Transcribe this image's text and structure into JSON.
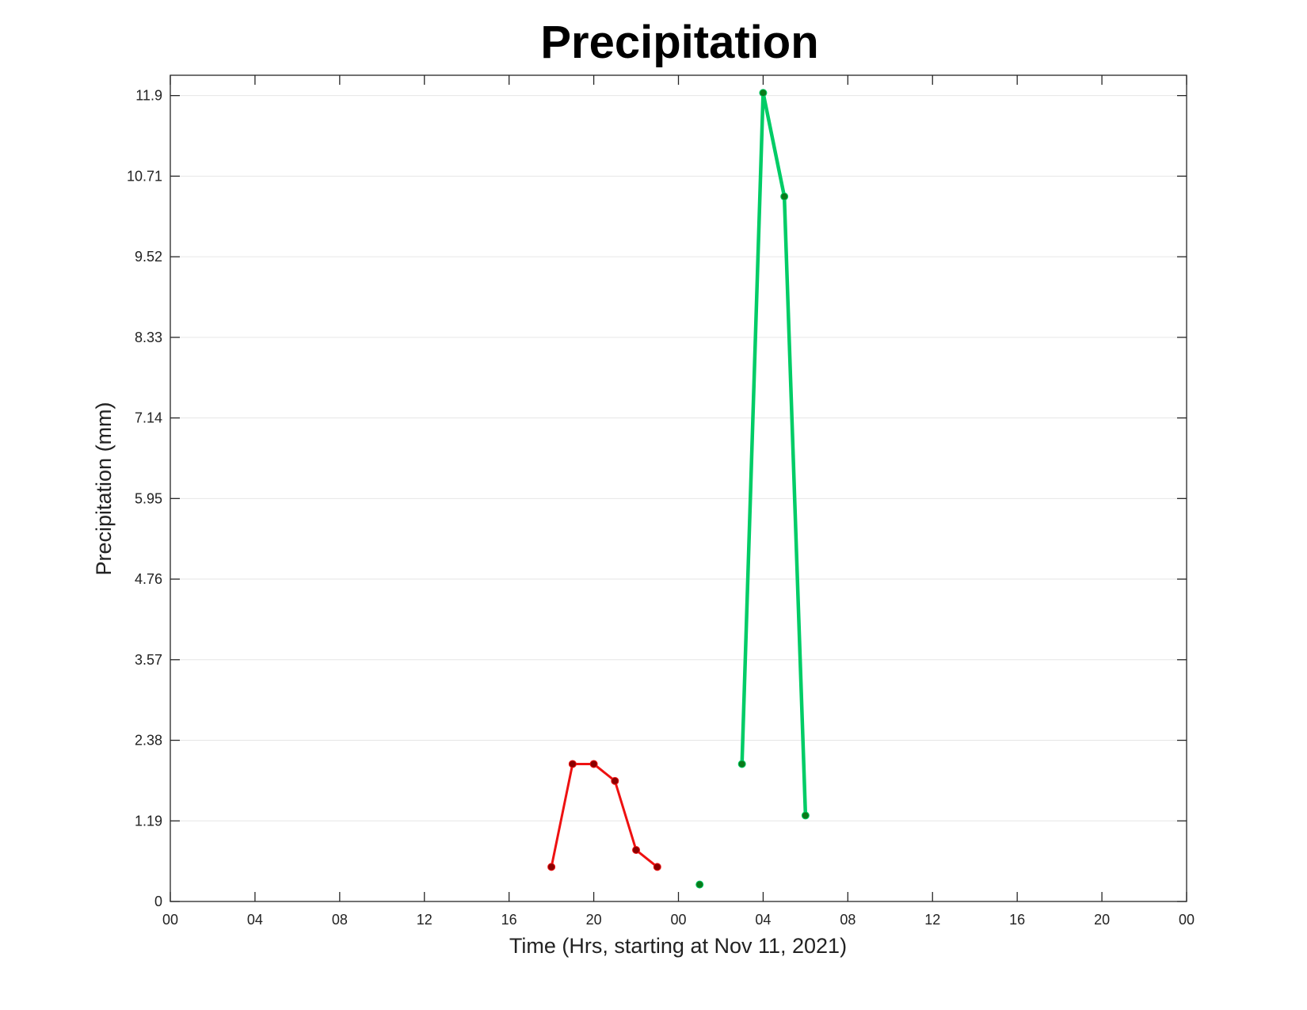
{
  "chart_data": {
    "type": "line",
    "title": "Precipitation",
    "xlabel": "Time (Hrs, starting at Nov 11, 2021)",
    "ylabel": "Precipitation (mm)",
    "xlim": [
      "2021-11-11T00:00",
      "2021-11-13T00:00"
    ],
    "ylim": [
      0,
      12.2
    ],
    "grid": "horizontal",
    "x_tick_values": [
      "2021-11-11T00:00",
      "2021-11-11T04:00",
      "2021-11-11T08:00",
      "2021-11-11T12:00",
      "2021-11-11T16:00",
      "2021-11-11T20:00",
      "2021-11-12T00:00",
      "2021-11-12T04:00",
      "2021-11-12T08:00",
      "2021-11-12T12:00",
      "2021-11-12T16:00",
      "2021-11-12T20:00",
      "2021-11-13T00:00"
    ],
    "x_tick_labels": [
      "00",
      "04",
      "08",
      "12",
      "16",
      "20",
      "00",
      "04",
      "08",
      "12",
      "16",
      "20",
      "00"
    ],
    "y_ticks": [
      0,
      1.19,
      2.38,
      3.57,
      4.76,
      5.95,
      7.14,
      8.33,
      9.52,
      10.71,
      11.9
    ],
    "y_tick_labels": [
      "0",
      "1.19",
      "2.38",
      "3.57",
      "4.76",
      "5.95",
      "7.14",
      "8.33",
      "9.52",
      "10.71",
      "11.9"
    ],
    "series": [
      {
        "color": "#ee1111",
        "marker_color": "#8b0000",
        "x": [
          "2021-11-11T18:00",
          "2021-11-11T19:00",
          "2021-11-11T20:00",
          "2021-11-11T21:00",
          "2021-11-11T22:00",
          "2021-11-11T23:00"
        ],
        "values": [
          0.51,
          2.03,
          2.03,
          1.78,
          0.76,
          0.51
        ]
      },
      {
        "color": "#00cc66",
        "marker_color": "#0a7a1a",
        "x": [
          "2021-11-12T01:00"
        ],
        "values": [
          0.25
        ]
      },
      {
        "color": "#00cc66",
        "marker_color": "#0a7a1a",
        "x": [
          "2021-11-12T03:00",
          "2021-11-12T04:00",
          "2021-11-12T05:00",
          "2021-11-12T06:00"
        ],
        "values": [
          2.03,
          11.94,
          10.41,
          1.27
        ]
      }
    ]
  }
}
